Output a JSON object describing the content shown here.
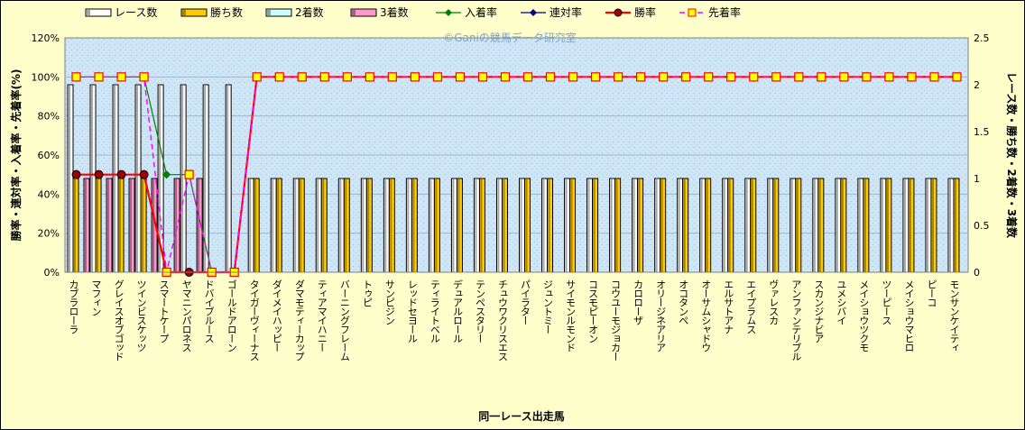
{
  "chart_data": {
    "type": "bar",
    "watermark": "©Ganiの競馬データ研究室",
    "xlabel": "同一レース出走馬",
    "ylabel_left": "勝率・連対率・入着率・先着率(%)",
    "ylabel_right": "レース数・勝ち数・2着数・3着数",
    "ylim_left": [
      0,
      120
    ],
    "ylim_right": [
      0,
      2.5
    ],
    "left_ticks": [
      "0%",
      "20%",
      "40%",
      "60%",
      "80%",
      "100%",
      "120%"
    ],
    "right_ticks": [
      "0",
      "0.5",
      "1",
      "1.5",
      "2",
      "2.5"
    ],
    "grid": true,
    "legend_position": "top",
    "categories": [
      "カブラローラ",
      "マフィン",
      "グレイスオブゴッド",
      "ツインビスケッツ",
      "スマートケープ",
      "ヤマニンパロネス",
      "ドバイブルース",
      "ゴールドアローン",
      "タイガーヴィーナス",
      "ダイメイハッピー",
      "ダマモティーカップ",
      "ティアマイハニー",
      "バーニングフレーム",
      "トゥピ",
      "サンピジン",
      "レッドセヨール",
      "ティライトベル",
      "デュアルロール",
      "テンペスタリー",
      "チュウワクリスエス",
      "パイラター",
      "ジュントミー",
      "サイモンルモンド",
      "コスモピーオン",
      "コウユーモジョカー",
      "カロローザ",
      "オリージネアリア",
      "オコタンペ",
      "オーサムシャドウ",
      "エルサトアナ",
      "エイプラムス",
      "ヴァレスカ",
      "アンファンテリブル",
      "スカンジナビア",
      "ユメシバイ",
      "メイショウツクモ",
      "ツーピース",
      "メイショウマヒロ",
      "ピーコ",
      "モンサンケイティ"
    ],
    "series": [
      {
        "name": "レース数",
        "axis": "right",
        "color": "#ffffff",
        "values": [
          2,
          2,
          2,
          2,
          2,
          2,
          2,
          2,
          1,
          1,
          1,
          1,
          1,
          1,
          1,
          1,
          1,
          1,
          1,
          1,
          1,
          1,
          1,
          1,
          1,
          1,
          1,
          1,
          1,
          1,
          1,
          1,
          1,
          1,
          1,
          1,
          1,
          1,
          1,
          1
        ]
      },
      {
        "name": "勝ち数",
        "axis": "right",
        "color": "#ffcc00",
        "values": [
          1,
          1,
          1,
          1,
          0,
          0,
          0,
          0,
          1,
          1,
          1,
          1,
          1,
          1,
          1,
          1,
          1,
          1,
          1,
          1,
          1,
          1,
          1,
          1,
          1,
          1,
          1,
          1,
          1,
          1,
          1,
          1,
          1,
          1,
          1,
          1,
          1,
          1,
          1,
          1
        ]
      },
      {
        "name": "2着数",
        "axis": "right",
        "color": "#ccffff",
        "values": [
          0,
          0,
          0,
          0,
          0,
          0,
          0,
          0,
          0,
          0,
          0,
          0,
          0,
          0,
          0,
          0,
          0,
          0,
          0,
          0,
          0,
          0,
          0,
          0,
          0,
          0,
          0,
          0,
          0,
          0,
          0,
          0,
          0,
          0,
          0,
          0,
          0,
          0,
          0,
          0
        ]
      },
      {
        "name": "3着数",
        "axis": "right",
        "color": "#ff99cc",
        "values": [
          1,
          1,
          1,
          1,
          1,
          1,
          0,
          0,
          0,
          0,
          0,
          0,
          0,
          0,
          0,
          0,
          0,
          0,
          0,
          0,
          0,
          0,
          0,
          0,
          0,
          0,
          0,
          0,
          0,
          0,
          0,
          0,
          0,
          0,
          0,
          0,
          0,
          0,
          0,
          0
        ]
      },
      {
        "name": "入着率",
        "axis": "left",
        "color": "#008000",
        "values": [
          100,
          100,
          100,
          100,
          50,
          50,
          0,
          0,
          100,
          100,
          100,
          100,
          100,
          100,
          100,
          100,
          100,
          100,
          100,
          100,
          100,
          100,
          100,
          100,
          100,
          100,
          100,
          100,
          100,
          100,
          100,
          100,
          100,
          100,
          100,
          100,
          100,
          100,
          100,
          100
        ]
      },
      {
        "name": "連対率",
        "axis": "left",
        "color": "#000080",
        "values": [
          50,
          50,
          50,
          50,
          0,
          0,
          0,
          0,
          100,
          100,
          100,
          100,
          100,
          100,
          100,
          100,
          100,
          100,
          100,
          100,
          100,
          100,
          100,
          100,
          100,
          100,
          100,
          100,
          100,
          100,
          100,
          100,
          100,
          100,
          100,
          100,
          100,
          100,
          100,
          100
        ]
      },
      {
        "name": "勝率",
        "axis": "left",
        "color": "#ff0000",
        "values": [
          50,
          50,
          50,
          50,
          0,
          0,
          0,
          0,
          100,
          100,
          100,
          100,
          100,
          100,
          100,
          100,
          100,
          100,
          100,
          100,
          100,
          100,
          100,
          100,
          100,
          100,
          100,
          100,
          100,
          100,
          100,
          100,
          100,
          100,
          100,
          100,
          100,
          100,
          100,
          100
        ]
      },
      {
        "name": "先着率",
        "axis": "left",
        "color": "#ff00ff",
        "values": [
          100,
          100,
          100,
          100,
          0,
          50,
          0,
          0,
          100,
          100,
          100,
          100,
          100,
          100,
          100,
          100,
          100,
          100,
          100,
          100,
          100,
          100,
          100,
          100,
          100,
          100,
          100,
          100,
          100,
          100,
          100,
          100,
          100,
          100,
          100,
          100,
          100,
          100,
          100,
          100
        ]
      }
    ]
  }
}
